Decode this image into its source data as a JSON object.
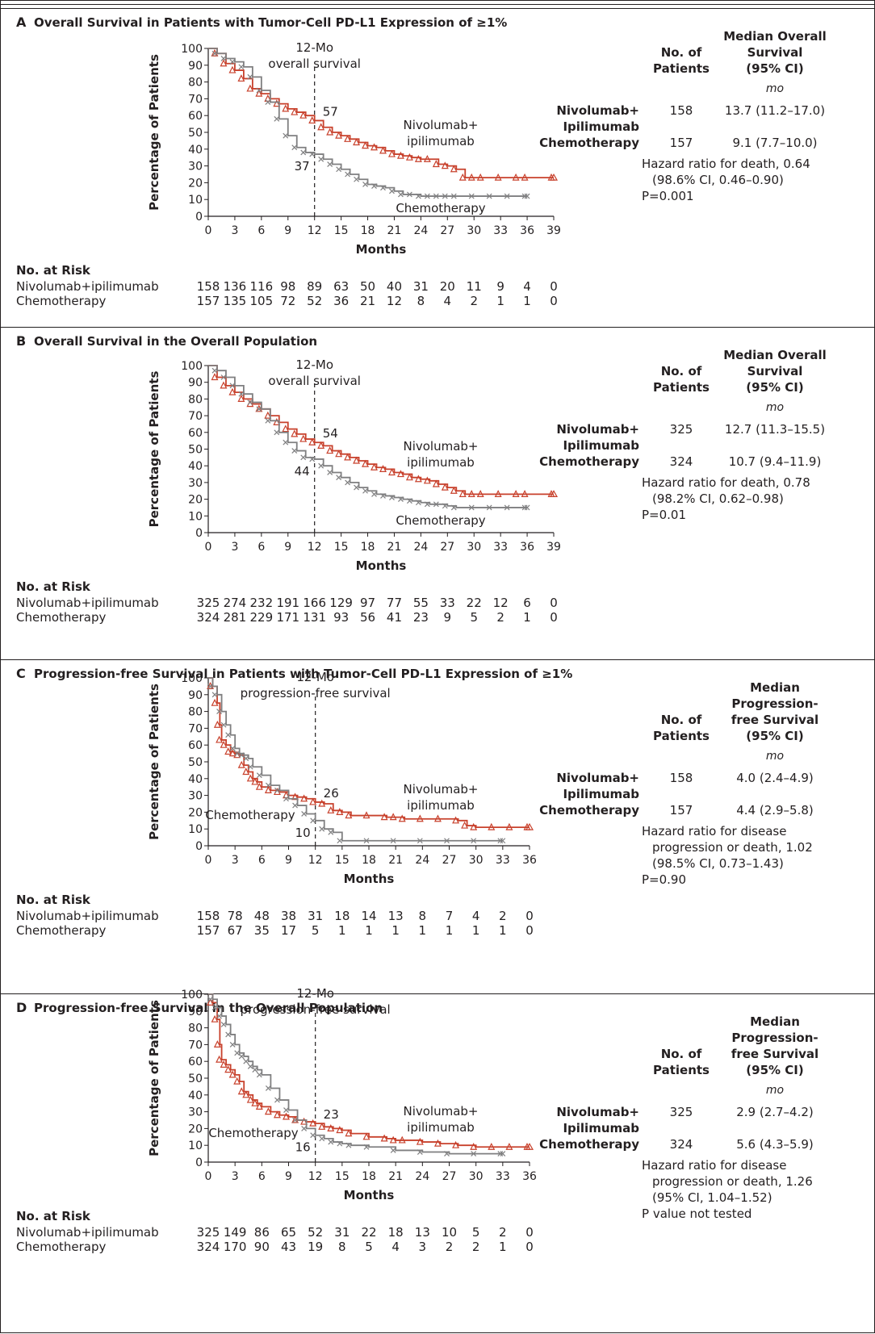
{
  "colors": {
    "nivolumab": "#c8412c",
    "chemo": "#7f7f80",
    "ink": "#231f20"
  },
  "strings": {
    "mo_label": "mo",
    "no_at_risk": "No. at Risk",
    "patients_header": [
      "No. of",
      "Patients"
    ]
  },
  "panels": [
    {
      "letter": "A",
      "title": "Overall Survival in Patients with Tumor-Cell PD-L1 Expression of ≥1%",
      "median_header": [
        "Median Overall",
        "Survival",
        "(95% CI)"
      ],
      "vline_label": [
        "12-Mo",
        "overall survival"
      ],
      "value_nivo": "57",
      "value_chemo": "37",
      "arm_rows": [
        {
          "name": "Nivolumab+",
          "n": "158",
          "median": "13.7 (11.2–17.0)"
        },
        {
          "name": "Ipilimumab",
          "n": "",
          "median": ""
        },
        {
          "name": "Chemotherapy",
          "n": "157",
          "median": "9.1 (7.7–10.0)"
        }
      ],
      "stats": [
        "Hazard ratio for death, 0.64",
        "(98.6% CI, 0.46–0.90)",
        "P=0.001"
      ],
      "risk": {
        "nivolumab_label": "Nivolumab+ipilimumab",
        "chemo_label": "Chemotherapy",
        "nivolumab": [
          "158",
          "136",
          "116",
          "98",
          "89",
          "63",
          "50",
          "40",
          "31",
          "20",
          "11",
          "9",
          "4",
          "0"
        ],
        "chemo": [
          "157",
          "135",
          "105",
          "72",
          "52",
          "36",
          "21",
          "12",
          "8",
          "4",
          "2",
          "1",
          "1",
          "0"
        ]
      },
      "curve_labels": {
        "nivo": [
          "Nivolumab+",
          "ipilimumab"
        ],
        "chemo": [
          "Chemotherapy"
        ]
      }
    },
    {
      "letter": "B",
      "title": "Overall Survival in the Overall Population",
      "median_header": [
        "Median Overall",
        "Survival",
        "(95% CI)"
      ],
      "vline_label": [
        "12-Mo",
        "overall survival"
      ],
      "value_nivo": "54",
      "value_chemo": "44",
      "arm_rows": [
        {
          "name": "Nivolumab+",
          "n": "325",
          "median": "12.7 (11.3–15.5)"
        },
        {
          "name": "Ipilimumab",
          "n": "",
          "median": ""
        },
        {
          "name": "Chemotherapy",
          "n": "324",
          "median": "10.7 (9.4–11.9)"
        }
      ],
      "stats": [
        "Hazard ratio for death, 0.78",
        "(98.2% CI, 0.62–0.98)",
        "P=0.01"
      ],
      "risk": {
        "nivolumab_label": "Nivolumab+ipilimumab",
        "chemo_label": "Chemotherapy",
        "nivolumab": [
          "325",
          "274",
          "232",
          "191",
          "166",
          "129",
          "97",
          "77",
          "55",
          "33",
          "22",
          "12",
          "6",
          "0"
        ],
        "chemo": [
          "324",
          "281",
          "229",
          "171",
          "131",
          "93",
          "56",
          "41",
          "23",
          "9",
          "5",
          "2",
          "1",
          "0"
        ]
      },
      "curve_labels": {
        "nivo": [
          "Nivolumab+",
          "ipilimumab"
        ],
        "chemo": [
          "Chemotherapy"
        ]
      }
    },
    {
      "letter": "C",
      "title": "Progression-free Survival in Patients with Tumor-Cell PD-L1 Expression of ≥1%",
      "median_header": [
        "Median",
        "Progression-",
        "free Survival",
        "(95% CI)"
      ],
      "vline_label": [
        "12-Mo",
        "progression-free survival"
      ],
      "value_nivo": "26",
      "value_chemo": "10",
      "arm_rows": [
        {
          "name": "Nivolumab+",
          "n": "158",
          "median": "4.0 (2.4–4.9)"
        },
        {
          "name": "Ipilimumab",
          "n": "",
          "median": ""
        },
        {
          "name": "Chemotherapy",
          "n": "157",
          "median": "4.4 (2.9–5.8)"
        }
      ],
      "stats": [
        "Hazard ratio for disease",
        "progression or death, 1.02",
        "(98.5% CI, 0.73–1.43)",
        "P=0.90"
      ],
      "risk": {
        "nivolumab_label": "Nivolumab+ipilimumab",
        "chemo_label": "Chemotherapy",
        "nivolumab": [
          "158",
          "78",
          "48",
          "38",
          "31",
          "18",
          "14",
          "13",
          "8",
          "7",
          "4",
          "2",
          "0"
        ],
        "chemo": [
          "157",
          "67",
          "35",
          "17",
          "5",
          "1",
          "1",
          "1",
          "1",
          "1",
          "1",
          "1",
          "0"
        ]
      },
      "curve_labels": {
        "nivo": [
          "Nivolumab+",
          "ipilimumab"
        ],
        "chemo": [
          "Chemotherapy"
        ]
      }
    },
    {
      "letter": "D",
      "title": "Progression-free Survival in the Overall Population",
      "median_header": [
        "Median",
        "Progression-",
        "free Survival",
        "(95% CI)"
      ],
      "vline_label": [
        "12-Mo",
        "progression-free survival"
      ],
      "value_nivo": "23",
      "value_chemo": "16",
      "arm_rows": [
        {
          "name": "Nivolumab+",
          "n": "325",
          "median": "2.9 (2.7–4.2)"
        },
        {
          "name": "Ipilimumab",
          "n": "",
          "median": ""
        },
        {
          "name": "Chemotherapy",
          "n": "324",
          "median": "5.6 (4.3–5.9)"
        }
      ],
      "stats": [
        "Hazard ratio for disease",
        "progression or death, 1.26",
        "(95% CI, 1.04–1.52)",
        "P value not tested"
      ],
      "risk": {
        "nivolumab_label": "Nivolumab+ipilimumab",
        "chemo_label": "Chemotherapy",
        "nivolumab": [
          "325",
          "149",
          "86",
          "65",
          "52",
          "31",
          "22",
          "18",
          "13",
          "10",
          "5",
          "2",
          "0"
        ],
        "chemo": [
          "324",
          "170",
          "90",
          "43",
          "19",
          "8",
          "5",
          "4",
          "3",
          "2",
          "2",
          "1",
          "0"
        ]
      },
      "curve_labels": {
        "nivo": [
          "Nivolumab+",
          "ipilimumab"
        ],
        "chemo": [
          "Chemotherapy"
        ]
      }
    }
  ],
  "chart_data": [
    {
      "type": "line",
      "title": "Overall Survival in Patients with Tumor-Cell PD-L1 Expression of ≥1%",
      "xlabel": "Months",
      "ylabel": "Percentage of Patients",
      "xlim": [
        0,
        39
      ],
      "ylim": [
        0,
        100
      ],
      "xticks": [
        0,
        3,
        6,
        9,
        12,
        15,
        18,
        21,
        24,
        27,
        30,
        33,
        36,
        39
      ],
      "yticks": [
        0,
        10,
        20,
        30,
        40,
        50,
        60,
        70,
        80,
        90,
        100
      ],
      "vline_x": 12,
      "series": [
        {
          "name": "Nivolumab+ipilimumab",
          "color": "#c8412c",
          "marker": "triangle",
          "x": [
            0,
            1,
            2,
            3,
            4,
            5,
            6,
            7,
            8,
            9,
            10,
            11,
            12,
            13,
            14,
            15,
            16,
            17,
            18,
            19,
            20,
            21,
            22,
            23,
            24,
            25,
            26,
            27,
            28,
            29,
            30,
            31,
            33,
            35,
            36,
            39
          ],
          "y": [
            100,
            97,
            91,
            87,
            82,
            76,
            73,
            70,
            67,
            64,
            62,
            60,
            57,
            53,
            50,
            48,
            46,
            44,
            42,
            41,
            39,
            37,
            36,
            35,
            34,
            34,
            31,
            30,
            28,
            23,
            23,
            23,
            23,
            23,
            23,
            23
          ]
        },
        {
          "name": "Chemotherapy",
          "color": "#7f7f80",
          "marker": "x",
          "x": [
            0,
            1,
            2,
            3,
            4,
            5,
            6,
            7,
            8,
            9,
            10,
            11,
            12,
            13,
            14,
            15,
            16,
            17,
            18,
            19,
            20,
            21,
            22,
            23,
            24,
            25,
            26,
            27,
            28,
            30,
            32,
            34,
            36
          ],
          "y": [
            100,
            97,
            94,
            92,
            89,
            83,
            75,
            68,
            58,
            48,
            41,
            38,
            37,
            34,
            31,
            28,
            25,
            22,
            19,
            18,
            17,
            15,
            13,
            13,
            12,
            12,
            12,
            12,
            12,
            12,
            12,
            12,
            12
          ]
        }
      ]
    },
    {
      "type": "line",
      "title": "Overall Survival in the Overall Population",
      "xlabel": "Months",
      "ylabel": "Percentage of Patients",
      "xlim": [
        0,
        39
      ],
      "ylim": [
        0,
        100
      ],
      "xticks": [
        0,
        3,
        6,
        9,
        12,
        15,
        18,
        21,
        24,
        27,
        30,
        33,
        36,
        39
      ],
      "yticks": [
        0,
        10,
        20,
        30,
        40,
        50,
        60,
        70,
        80,
        90,
        100
      ],
      "vline_x": 12,
      "series": [
        {
          "name": "Nivolumab+ipilimumab",
          "color": "#c8412c",
          "marker": "triangle",
          "x": [
            0,
            1,
            2,
            3,
            4,
            5,
            6,
            7,
            8,
            9,
            10,
            11,
            12,
            13,
            14,
            15,
            16,
            17,
            18,
            19,
            20,
            21,
            22,
            23,
            24,
            25,
            26,
            27,
            28,
            29,
            30,
            31,
            33,
            35,
            36,
            39
          ],
          "y": [
            100,
            93,
            88,
            84,
            80,
            77,
            74,
            70,
            66,
            62,
            59,
            56,
            54,
            52,
            49,
            47,
            45,
            43,
            41,
            39,
            38,
            36,
            35,
            33,
            32,
            31,
            29,
            27,
            25,
            23,
            23,
            23,
            23,
            23,
            23,
            23
          ]
        },
        {
          "name": "Chemotherapy",
          "color": "#7f7f80",
          "marker": "x",
          "x": [
            0,
            1,
            2,
            3,
            4,
            5,
            6,
            7,
            8,
            9,
            10,
            11,
            12,
            13,
            14,
            15,
            16,
            17,
            18,
            19,
            20,
            21,
            22,
            23,
            24,
            25,
            26,
            27,
            28,
            30,
            32,
            34,
            36
          ],
          "y": [
            100,
            97,
            93,
            88,
            83,
            78,
            74,
            67,
            60,
            54,
            49,
            45,
            44,
            40,
            36,
            33,
            30,
            27,
            25,
            23,
            22,
            21,
            20,
            19,
            18,
            17,
            17,
            16,
            15,
            15,
            15,
            15,
            15
          ]
        }
      ]
    },
    {
      "type": "line",
      "title": "Progression-free Survival in Patients with Tumor-Cell PD-L1 Expression of ≥1%",
      "xlabel": "Months",
      "ylabel": "Percentage of Patients",
      "xlim": [
        0,
        36
      ],
      "ylim": [
        0,
        100
      ],
      "xticks": [
        0,
        3,
        6,
        9,
        12,
        15,
        18,
        21,
        24,
        27,
        30,
        33,
        36
      ],
      "yticks": [
        0,
        10,
        20,
        30,
        40,
        50,
        60,
        70,
        80,
        90,
        100
      ],
      "vline_x": 12,
      "series": [
        {
          "name": "Nivolumab+ipilimumab",
          "color": "#c8412c",
          "marker": "triangle",
          "x": [
            0,
            0.5,
            1,
            1.3,
            1.5,
            2,
            2.5,
            3,
            3.5,
            4,
            4.5,
            5,
            5.5,
            6,
            7,
            8,
            9,
            10,
            11,
            12,
            13,
            14,
            15,
            16,
            18,
            20,
            21,
            22,
            24,
            26,
            28,
            29,
            30,
            32,
            34,
            36
          ],
          "y": [
            100,
            95,
            85,
            72,
            63,
            60,
            56,
            55,
            54,
            48,
            44,
            40,
            38,
            35,
            33,
            32,
            30,
            29,
            28,
            26,
            25,
            21,
            20,
            18,
            18,
            17,
            17,
            16,
            16,
            16,
            15,
            12,
            11,
            11,
            11,
            11
          ]
        },
        {
          "name": "Chemotherapy",
          "color": "#7f7f80",
          "marker": "x",
          "x": [
            0,
            0.5,
            1,
            1.5,
            2,
            2.5,
            3,
            3.5,
            4,
            4.5,
            5,
            6,
            7,
            8,
            9,
            10,
            11,
            12,
            13,
            14,
            15,
            18,
            21,
            24,
            27,
            30,
            33
          ],
          "y": [
            100,
            95,
            90,
            80,
            72,
            66,
            58,
            55,
            54,
            52,
            47,
            42,
            36,
            33,
            28,
            24,
            19,
            15,
            10,
            8,
            3,
            3,
            3,
            3,
            3,
            3,
            3
          ]
        }
      ]
    },
    {
      "type": "line",
      "title": "Progression-free Survival in the Overall Population",
      "xlabel": "Months",
      "ylabel": "Percentage of Patients",
      "xlim": [
        0,
        36
      ],
      "ylim": [
        0,
        100
      ],
      "xticks": [
        0,
        3,
        6,
        9,
        12,
        15,
        18,
        21,
        24,
        27,
        30,
        33,
        36
      ],
      "yticks": [
        0,
        10,
        20,
        30,
        40,
        50,
        60,
        70,
        80,
        90,
        100
      ],
      "vline_x": 12,
      "series": [
        {
          "name": "Nivolumab+ipilimumab",
          "color": "#c8412c",
          "marker": "triangle",
          "x": [
            0,
            0.5,
            1,
            1.3,
            1.5,
            2,
            2.5,
            3,
            3.5,
            4,
            4.5,
            5,
            5.5,
            6,
            7,
            8,
            9,
            10,
            11,
            12,
            13,
            14,
            15,
            16,
            18,
            20,
            21,
            22,
            24,
            26,
            28,
            30,
            32,
            34,
            36
          ],
          "y": [
            100,
            95,
            85,
            70,
            61,
            58,
            55,
            52,
            48,
            42,
            40,
            37,
            35,
            33,
            30,
            28,
            27,
            25,
            24,
            23,
            21,
            20,
            19,
            17,
            15,
            14,
            13,
            13,
            12,
            11,
            10,
            9,
            9,
            9,
            9
          ]
        },
        {
          "name": "Chemotherapy",
          "color": "#7f7f80",
          "marker": "x",
          "x": [
            0,
            0.5,
            1,
            1.5,
            2,
            2.5,
            3,
            3.5,
            4,
            4.5,
            5,
            5.5,
            6,
            7,
            8,
            9,
            10,
            11,
            12,
            13,
            14,
            15,
            16,
            18,
            21,
            24,
            27,
            30,
            33
          ],
          "y": [
            100,
            97,
            92,
            87,
            82,
            76,
            70,
            65,
            63,
            60,
            57,
            55,
            52,
            44,
            37,
            31,
            25,
            20,
            16,
            14,
            12,
            11,
            10,
            9,
            7,
            6,
            5,
            5,
            5
          ]
        }
      ]
    }
  ]
}
